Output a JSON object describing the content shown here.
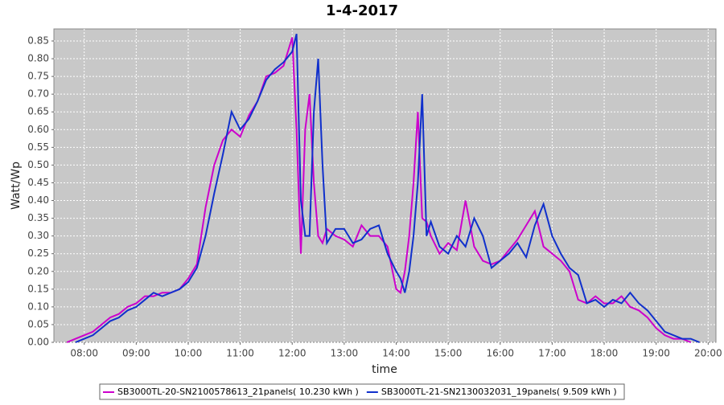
{
  "chart_data": {
    "type": "line",
    "title": "1-4-2017",
    "x_label": "time",
    "y_label": "Watt/Wp",
    "x": [
      "07:40",
      "07:50",
      "08:00",
      "08:10",
      "08:20",
      "08:30",
      "08:40",
      "08:50",
      "09:00",
      "09:10",
      "09:20",
      "09:30",
      "09:40",
      "09:50",
      "10:00",
      "10:10",
      "10:20",
      "10:30",
      "10:40",
      "10:50",
      "11:00",
      "11:10",
      "11:20",
      "11:30",
      "11:40",
      "11:50",
      "12:00",
      "12:05",
      "12:10",
      "12:15",
      "12:20",
      "12:25",
      "12:30",
      "12:35",
      "12:40",
      "12:50",
      "13:00",
      "13:10",
      "13:20",
      "13:30",
      "13:40",
      "13:50",
      "14:00",
      "14:05",
      "14:10",
      "14:15",
      "14:20",
      "14:25",
      "14:30",
      "14:35",
      "14:40",
      "14:50",
      "15:00",
      "15:10",
      "15:20",
      "15:30",
      "15:40",
      "15:50",
      "16:00",
      "16:10",
      "16:20",
      "16:30",
      "16:40",
      "16:50",
      "17:00",
      "17:10",
      "17:20",
      "17:30",
      "17:40",
      "17:50",
      "18:00",
      "18:10",
      "18:20",
      "18:30",
      "18:40",
      "18:50",
      "19:00",
      "19:10",
      "19:20",
      "19:30",
      "19:40",
      "19:50"
    ],
    "series": [
      {
        "name": "SB3000TL-20-SN2100578613_21panels( 10.230 kWh )",
        "color": "#cc00cc",
        "values": [
          0.0,
          0.01,
          0.02,
          0.03,
          0.05,
          0.07,
          0.08,
          0.1,
          0.11,
          0.13,
          0.13,
          0.14,
          0.14,
          0.15,
          0.18,
          0.22,
          0.38,
          0.5,
          0.57,
          0.6,
          0.58,
          0.64,
          0.68,
          0.75,
          0.76,
          0.78,
          0.86,
          0.6,
          0.25,
          0.6,
          0.7,
          0.45,
          0.3,
          0.28,
          0.32,
          0.3,
          0.29,
          0.27,
          0.33,
          0.3,
          0.3,
          0.27,
          0.15,
          0.14,
          0.2,
          0.3,
          0.45,
          0.65,
          0.35,
          0.34,
          0.3,
          0.25,
          0.28,
          0.26,
          0.4,
          0.27,
          0.23,
          0.22,
          0.23,
          0.26,
          0.29,
          0.33,
          0.37,
          0.27,
          0.25,
          0.23,
          0.2,
          0.12,
          0.11,
          0.13,
          0.11,
          0.11,
          0.13,
          0.1,
          0.09,
          0.07,
          0.04,
          0.02,
          0.01,
          0.01,
          0.0,
          null
        ]
      },
      {
        "name": "SB3000TL-21-SN2130032031_19panels( 9.509 kWh )",
        "color": "#1030cc",
        "values": [
          null,
          0.0,
          0.01,
          0.02,
          0.04,
          0.06,
          0.07,
          0.09,
          0.1,
          0.12,
          0.14,
          0.13,
          0.14,
          0.15,
          0.17,
          0.21,
          0.3,
          0.42,
          0.53,
          0.65,
          0.6,
          0.63,
          0.68,
          0.74,
          0.77,
          0.79,
          0.82,
          0.87,
          0.4,
          0.3,
          0.3,
          0.65,
          0.8,
          0.5,
          0.28,
          0.32,
          0.32,
          0.28,
          0.29,
          0.32,
          0.33,
          0.25,
          0.2,
          0.18,
          0.14,
          0.2,
          0.3,
          0.45,
          0.7,
          0.3,
          0.34,
          0.27,
          0.25,
          0.3,
          0.27,
          0.35,
          0.3,
          0.21,
          0.23,
          0.25,
          0.28,
          0.24,
          0.33,
          0.39,
          0.3,
          0.25,
          0.21,
          0.19,
          0.11,
          0.12,
          0.1,
          0.12,
          0.11,
          0.14,
          0.11,
          0.09,
          0.06,
          0.03,
          0.02,
          0.01,
          0.01,
          0.0
        ]
      }
    ],
    "xlim": [
      "07:25",
      "20:09"
    ],
    "xticks": [
      "08:00",
      "09:00",
      "10:00",
      "11:00",
      "12:00",
      "13:00",
      "14:00",
      "15:00",
      "16:00",
      "17:00",
      "18:00",
      "19:00",
      "20:00"
    ],
    "ylim": [
      0,
      0.884
    ],
    "yticks": [
      {
        "value": 0,
        "label": "0.00"
      },
      {
        "value": 0.05,
        "label": "0.05"
      },
      {
        "value": 0.1,
        "label": "0.10"
      },
      {
        "value": 0.15,
        "label": "0.15"
      },
      {
        "value": 0.2,
        "label": "0.20"
      },
      {
        "value": 0.25,
        "label": "0.25"
      },
      {
        "value": 0.3,
        "label": "0.30"
      },
      {
        "value": 0.35,
        "label": "0.35"
      },
      {
        "value": 0.4,
        "label": "0.40"
      },
      {
        "value": 0.45,
        "label": "0.45"
      },
      {
        "value": 0.5,
        "label": "0.50"
      },
      {
        "value": 0.55,
        "label": "0.55"
      },
      {
        "value": 0.6,
        "label": "0.60"
      },
      {
        "value": 0.65,
        "label": "0.65"
      },
      {
        "value": 0.7,
        "label": "0.70"
      },
      {
        "value": 0.75,
        "label": "0.75"
      },
      {
        "value": 0.8,
        "label": "0.80"
      },
      {
        "value": 0.85,
        "label": "0.85"
      }
    ],
    "grid": true,
    "legend": "bottom"
  }
}
